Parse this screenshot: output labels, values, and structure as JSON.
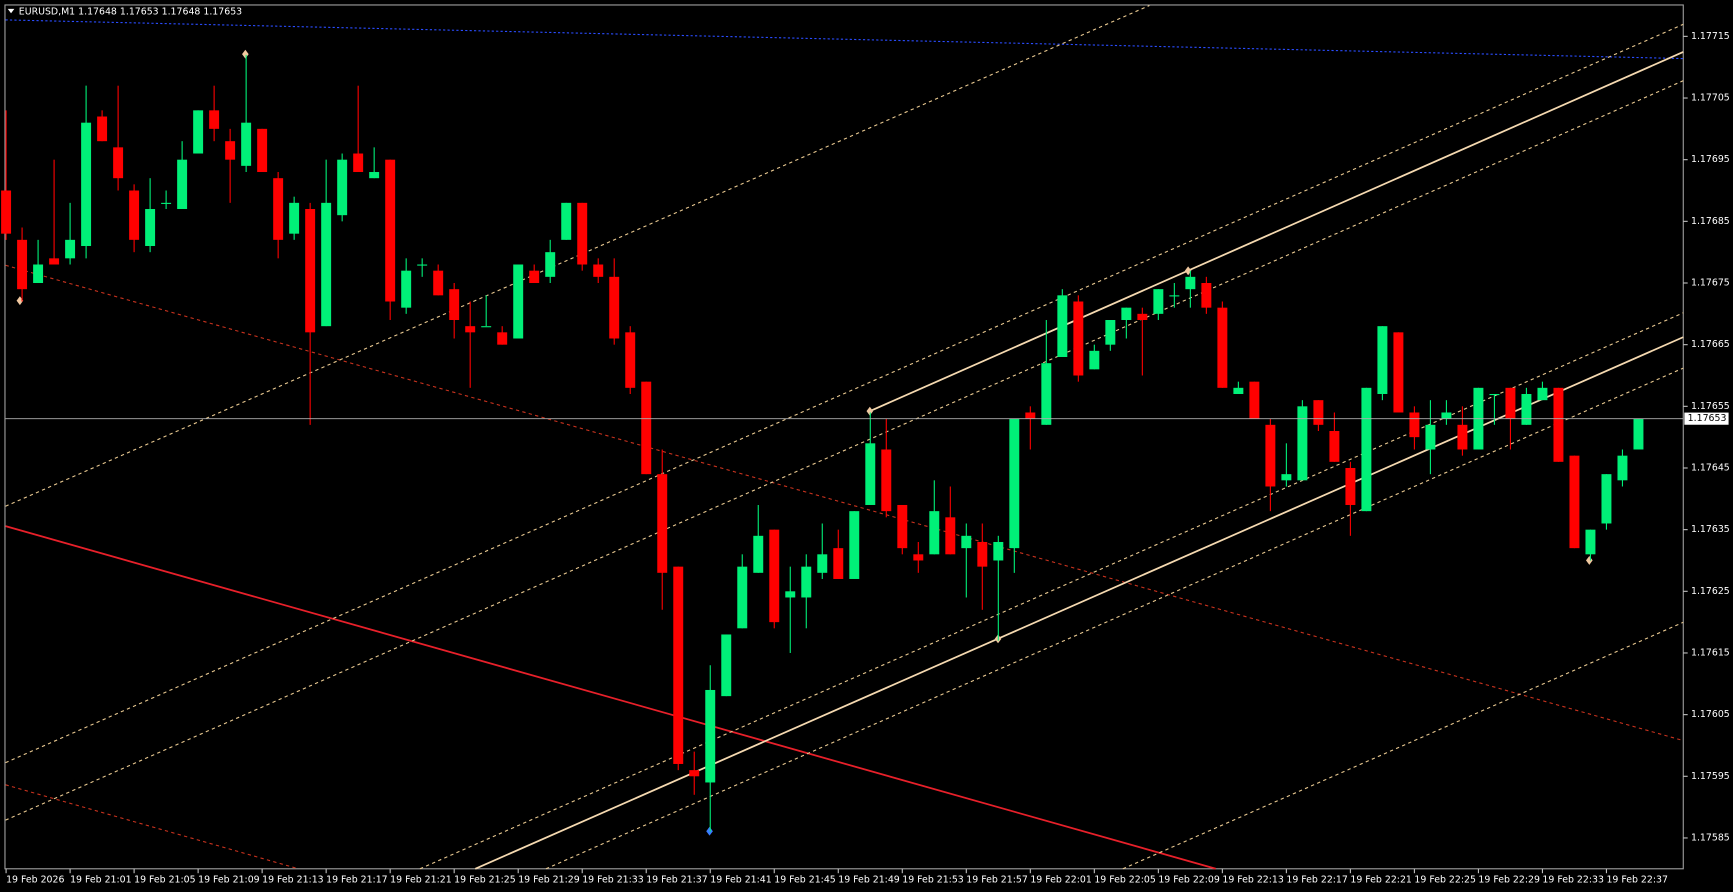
{
  "chart_data": {
    "type": "candlestick",
    "title": "EURUSD,M1  1.17648 1.17653 1.17648 1.17653",
    "categories": [
      "19 Feb 2026",
      null,
      null,
      null,
      "19 Feb 21:01",
      null,
      null,
      null,
      "19 Feb 21:05",
      null,
      null,
      null,
      "19 Feb 21:09",
      null,
      null,
      null,
      "19 Feb 21:13",
      null,
      null,
      null,
      "19 Feb 21:17",
      null,
      null,
      null,
      "19 Feb 21:21",
      null,
      null,
      null,
      "19 Feb 21:25",
      null,
      null,
      null,
      "19 Feb 21:29",
      null,
      null,
      null,
      "19 Feb 21:33",
      null,
      null,
      null,
      "19 Feb 21:37",
      null,
      null,
      null,
      "19 Feb 21:41",
      null,
      null,
      null,
      "19 Feb 21:45",
      null,
      null,
      null,
      "19 Feb 21:49",
      null,
      null,
      null,
      "19 Feb 21:53",
      null,
      null,
      null,
      "19 Feb 21:57",
      null,
      null,
      null,
      "19 Feb 22:01",
      null,
      null,
      null,
      "19 Feb 22:05",
      null,
      null,
      null,
      "19 Feb 22:09",
      null,
      null,
      null,
      "19 Feb 22:13",
      null,
      null,
      null,
      "19 Feb 22:17",
      null,
      null,
      null,
      "19 Feb 22:21",
      null,
      null,
      null,
      "19 Feb 22:25",
      null,
      null,
      null,
      "19 Feb 22:29",
      null,
      null,
      null,
      "19 Feb 22:33",
      null,
      null,
      null,
      "19 Feb 22:37",
      null,
      null
    ],
    "open": [
      1.1769,
      1.17682,
      1.17675,
      1.17679,
      1.17679,
      1.17681,
      1.17702,
      1.17697,
      1.1769,
      1.17681,
      1.17688,
      1.17687,
      1.17696,
      1.17703,
      1.17698,
      1.17694,
      1.177,
      1.17692,
      1.17683,
      1.17687,
      1.17668,
      1.17686,
      1.17696,
      1.17692,
      1.17695,
      1.17671,
      1.17678,
      1.17677,
      1.17674,
      1.17668,
      1.17668,
      1.17667,
      1.17666,
      1.17677,
      1.17676,
      1.17682,
      1.17688,
      1.17678,
      1.17676,
      1.17667,
      1.17659,
      1.17644,
      1.17629,
      1.17596,
      1.17594,
      1.17608,
      1.17619,
      1.17628,
      1.17635,
      1.17624,
      1.17624,
      1.17628,
      1.17632,
      1.17627,
      1.17639,
      1.17648,
      1.17639,
      1.17631,
      1.17631,
      1.17637,
      1.17632,
      1.17633,
      1.1763,
      1.17632,
      1.17654,
      1.17652,
      1.17663,
      1.17672,
      1.17661,
      1.17665,
      1.17669,
      1.1767,
      1.1767,
      1.17673,
      1.17674,
      1.17675,
      1.17671,
      1.17657,
      1.17659,
      1.17652,
      1.17643,
      1.17643,
      1.17656,
      1.17651,
      1.17645,
      1.17638,
      1.17657,
      1.17667,
      1.17654,
      1.17648,
      1.17653,
      1.17652,
      1.17648,
      1.17657,
      1.17658,
      1.17652,
      1.17656,
      1.17658,
      1.17647,
      1.17631,
      1.17636,
      1.17643,
      1.17648
    ],
    "high": [
      1.17703,
      1.17684,
      1.17682,
      1.17695,
      1.17688,
      1.17707,
      1.17703,
      1.17707,
      1.17691,
      1.17692,
      1.1769,
      1.17698,
      1.17703,
      1.17707,
      1.177,
      1.17712,
      1.177,
      1.17693,
      1.17689,
      1.17688,
      1.17695,
      1.17696,
      1.17707,
      1.17697,
      1.17695,
      1.17679,
      1.17679,
      1.17678,
      1.17675,
      1.17672,
      1.17673,
      1.17668,
      1.17678,
      1.17678,
      1.17682,
      1.17688,
      1.17688,
      1.17679,
      1.17679,
      1.17668,
      1.17659,
      1.17648,
      1.17629,
      1.17599,
      1.17613,
      1.17618,
      1.17631,
      1.17639,
      1.17635,
      1.17629,
      1.17631,
      1.17636,
      1.17635,
      1.17638,
      1.17654,
      1.17653,
      1.17639,
      1.17633,
      1.17643,
      1.17642,
      1.17636,
      1.17636,
      1.17634,
      1.17653,
      1.17655,
      1.17669,
      1.17674,
      1.17673,
      1.17665,
      1.17669,
      1.17671,
      1.17671,
      1.17674,
      1.17675,
      1.17677,
      1.17676,
      1.17672,
      1.17659,
      1.17659,
      1.17653,
      1.17649,
      1.17656,
      1.17656,
      1.17654,
      1.17646,
      1.17658,
      1.17668,
      1.17667,
      1.17655,
      1.17656,
      1.17656,
      1.17655,
      1.17658,
      1.17657,
      1.17658,
      1.17658,
      1.17659,
      1.17658,
      1.17647,
      1.17635,
      1.17644,
      1.17648,
      1.17653
    ],
    "low": [
      1.17682,
      1.17672,
      1.17675,
      1.17678,
      1.17678,
      1.17679,
      1.17698,
      1.1769,
      1.1768,
      1.1768,
      1.17687,
      1.17687,
      1.17696,
      1.17698,
      1.17688,
      1.17693,
      1.17693,
      1.17679,
      1.17682,
      1.17652,
      1.17668,
      1.17685,
      1.17693,
      1.17692,
      1.17669,
      1.1767,
      1.17676,
      1.17673,
      1.17666,
      1.17658,
      1.17668,
      1.17665,
      1.17666,
      1.17675,
      1.17675,
      1.17682,
      1.17677,
      1.17675,
      1.17665,
      1.17657,
      1.17644,
      1.17622,
      1.17596,
      1.17592,
      1.17586,
      1.17608,
      1.17619,
      1.17628,
      1.17619,
      1.17615,
      1.17619,
      1.17627,
      1.17627,
      1.17627,
      1.17639,
      1.17637,
      1.17631,
      1.17628,
      1.17631,
      1.17631,
      1.17624,
      1.17622,
      1.17617,
      1.17628,
      1.17648,
      1.17652,
      1.17663,
      1.17659,
      1.17661,
      1.17664,
      1.17666,
      1.1766,
      1.17669,
      1.17671,
      1.17671,
      1.1767,
      1.17658,
      1.17657,
      1.17653,
      1.17638,
      1.17642,
      1.17643,
      1.17651,
      1.17646,
      1.17634,
      1.17638,
      1.17656,
      1.17654,
      1.17648,
      1.17644,
      1.17652,
      1.17647,
      1.17648,
      1.17652,
      1.17648,
      1.17652,
      1.17656,
      1.17646,
      1.17632,
      1.1763,
      1.17635,
      1.17642,
      1.17648
    ],
    "close": [
      1.17683,
      1.17674,
      1.17678,
      1.17678,
      1.17682,
      1.17701,
      1.17698,
      1.17692,
      1.17682,
      1.17687,
      1.17688,
      1.17695,
      1.17703,
      1.177,
      1.17695,
      1.17701,
      1.17693,
      1.17682,
      1.17688,
      1.17667,
      1.17688,
      1.17695,
      1.17693,
      1.17693,
      1.17672,
      1.17677,
      1.17678,
      1.17673,
      1.17669,
      1.17667,
      1.17668,
      1.17665,
      1.17678,
      1.17675,
      1.1768,
      1.17688,
      1.17678,
      1.17676,
      1.17666,
      1.17658,
      1.17644,
      1.17628,
      1.17597,
      1.17595,
      1.17609,
      1.17618,
      1.17629,
      1.17634,
      1.1762,
      1.17625,
      1.17629,
      1.17631,
      1.17627,
      1.17638,
      1.17649,
      1.17638,
      1.17632,
      1.1763,
      1.17638,
      1.17631,
      1.17634,
      1.17629,
      1.17633,
      1.17653,
      1.17653,
      1.17662,
      1.17673,
      1.1766,
      1.17664,
      1.17669,
      1.17671,
      1.17669,
      1.17674,
      1.17673,
      1.17676,
      1.17671,
      1.17658,
      1.17658,
      1.17653,
      1.17642,
      1.17644,
      1.17655,
      1.17652,
      1.17646,
      1.17639,
      1.17658,
      1.17668,
      1.17654,
      1.1765,
      1.17652,
      1.17654,
      1.17648,
      1.17658,
      1.17657,
      1.17653,
      1.17657,
      1.17658,
      1.17646,
      1.17632,
      1.17635,
      1.17644,
      1.17647,
      1.17653
    ],
    "up_color": "#00f078",
    "down_color": "#ff0000",
    "ylim": [
      1.1758,
      1.1772
    ],
    "yticks": [
      1.17715,
      1.17705,
      1.17695,
      1.17685,
      1.17675,
      1.17665,
      1.17655,
      1.17645,
      1.17635,
      1.17625,
      1.17615,
      1.17605,
      1.17595,
      1.17585
    ],
    "last_price": 1.17653
  }
}
